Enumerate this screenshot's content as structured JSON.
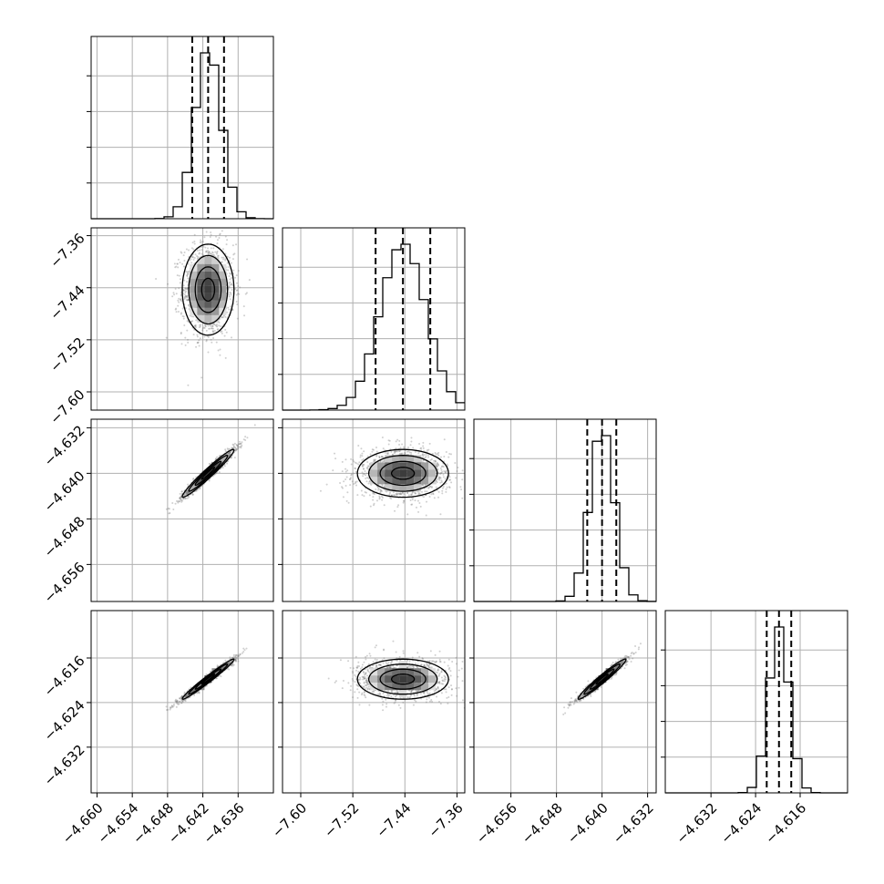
{
  "chart_data": {
    "type": "corner",
    "parameters": [
      {
        "id": "p1",
        "range": [
          -4.661,
          -4.63
        ]
      },
      {
        "id": "p2",
        "range": [
          -7.628,
          -7.348
        ]
      },
      {
        "id": "p3",
        "range": [
          -4.6625,
          -4.6305
        ]
      },
      {
        "id": "p4",
        "range": [
          -4.6402,
          -4.6075
        ]
      }
    ],
    "x_ticks": [
      {
        "values": [
          -4.66,
          -4.654,
          -4.648,
          -4.642,
          -4.636
        ],
        "labels": [
          "−4.660",
          "−4.654",
          "−4.648",
          "−4.642",
          "−4.636"
        ]
      },
      {
        "values": [
          -7.6,
          -7.52,
          -7.44,
          -7.36
        ],
        "labels": [
          "−7.60",
          "−7.52",
          "−7.44",
          "−7.36"
        ]
      },
      {
        "values": [
          -4.656,
          -4.648,
          -4.64,
          -4.632
        ],
        "labels": [
          "−4.656",
          "−4.648",
          "−4.640",
          "−4.632"
        ]
      },
      {
        "values": [
          -4.632,
          -4.624,
          -4.616
        ],
        "labels": [
          "−4.632",
          "−4.624",
          "−4.616"
        ]
      }
    ],
    "y_ticks": {
      "row2": {
        "values": [
          -7.36,
          -7.44,
          -7.52,
          -7.6
        ],
        "labels": [
          "−7.36",
          "−7.44",
          "−7.52",
          "−7.60"
        ]
      },
      "row3": {
        "values": [
          -4.632,
          -4.64,
          -4.648,
          -4.656
        ],
        "labels": [
          "−4.632",
          "−4.640",
          "−4.648",
          "−4.656"
        ]
      },
      "row4": {
        "values": [
          -4.616,
          -4.624,
          -4.632
        ],
        "labels": [
          "−4.616",
          "−4.624",
          "−4.632"
        ]
      }
    },
    "histograms": [
      {
        "param": "p1",
        "mean": -4.6411,
        "sd": 0.0022,
        "quantiles": [
          -4.6438,
          -4.6411,
          -4.6384
        ]
      },
      {
        "param": "p2",
        "mean": -7.443,
        "sd": 0.035,
        "quantiles": [
          -7.485,
          -7.443,
          -7.401
        ]
      },
      {
        "param": "p3",
        "mean": -4.64,
        "sd": 0.0021,
        "quantiles": [
          -4.6426,
          -4.64,
          -4.6375
        ]
      },
      {
        "param": "p4",
        "mean": -4.6198,
        "sd": 0.0018,
        "quantiles": [
          -4.622,
          -4.6198,
          -4.6176
        ]
      }
    ],
    "pairs": [
      {
        "x": "p1",
        "y": "p2",
        "correlation": 0.0
      },
      {
        "x": "p1",
        "y": "p3",
        "correlation": 0.97
      },
      {
        "x": "p2",
        "y": "p3",
        "correlation": 0.0
      },
      {
        "x": "p1",
        "y": "p4",
        "correlation": 0.98
      },
      {
        "x": "p2",
        "y": "p4",
        "correlation": 0.0
      },
      {
        "x": "p3",
        "y": "p4",
        "correlation": 0.97
      }
    ],
    "grid": true
  }
}
